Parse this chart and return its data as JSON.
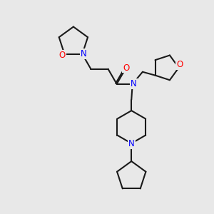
{
  "bg_color": "#e8e8e8",
  "bond_color": "#1a1a1a",
  "N_color": "#0000ff",
  "O_color": "#ff0000",
  "bond_width": 1.5,
  "fig_size": [
    3.0,
    3.0
  ],
  "dpi": 100,
  "xlim": [
    0,
    10
  ],
  "ylim": [
    0,
    10
  ]
}
